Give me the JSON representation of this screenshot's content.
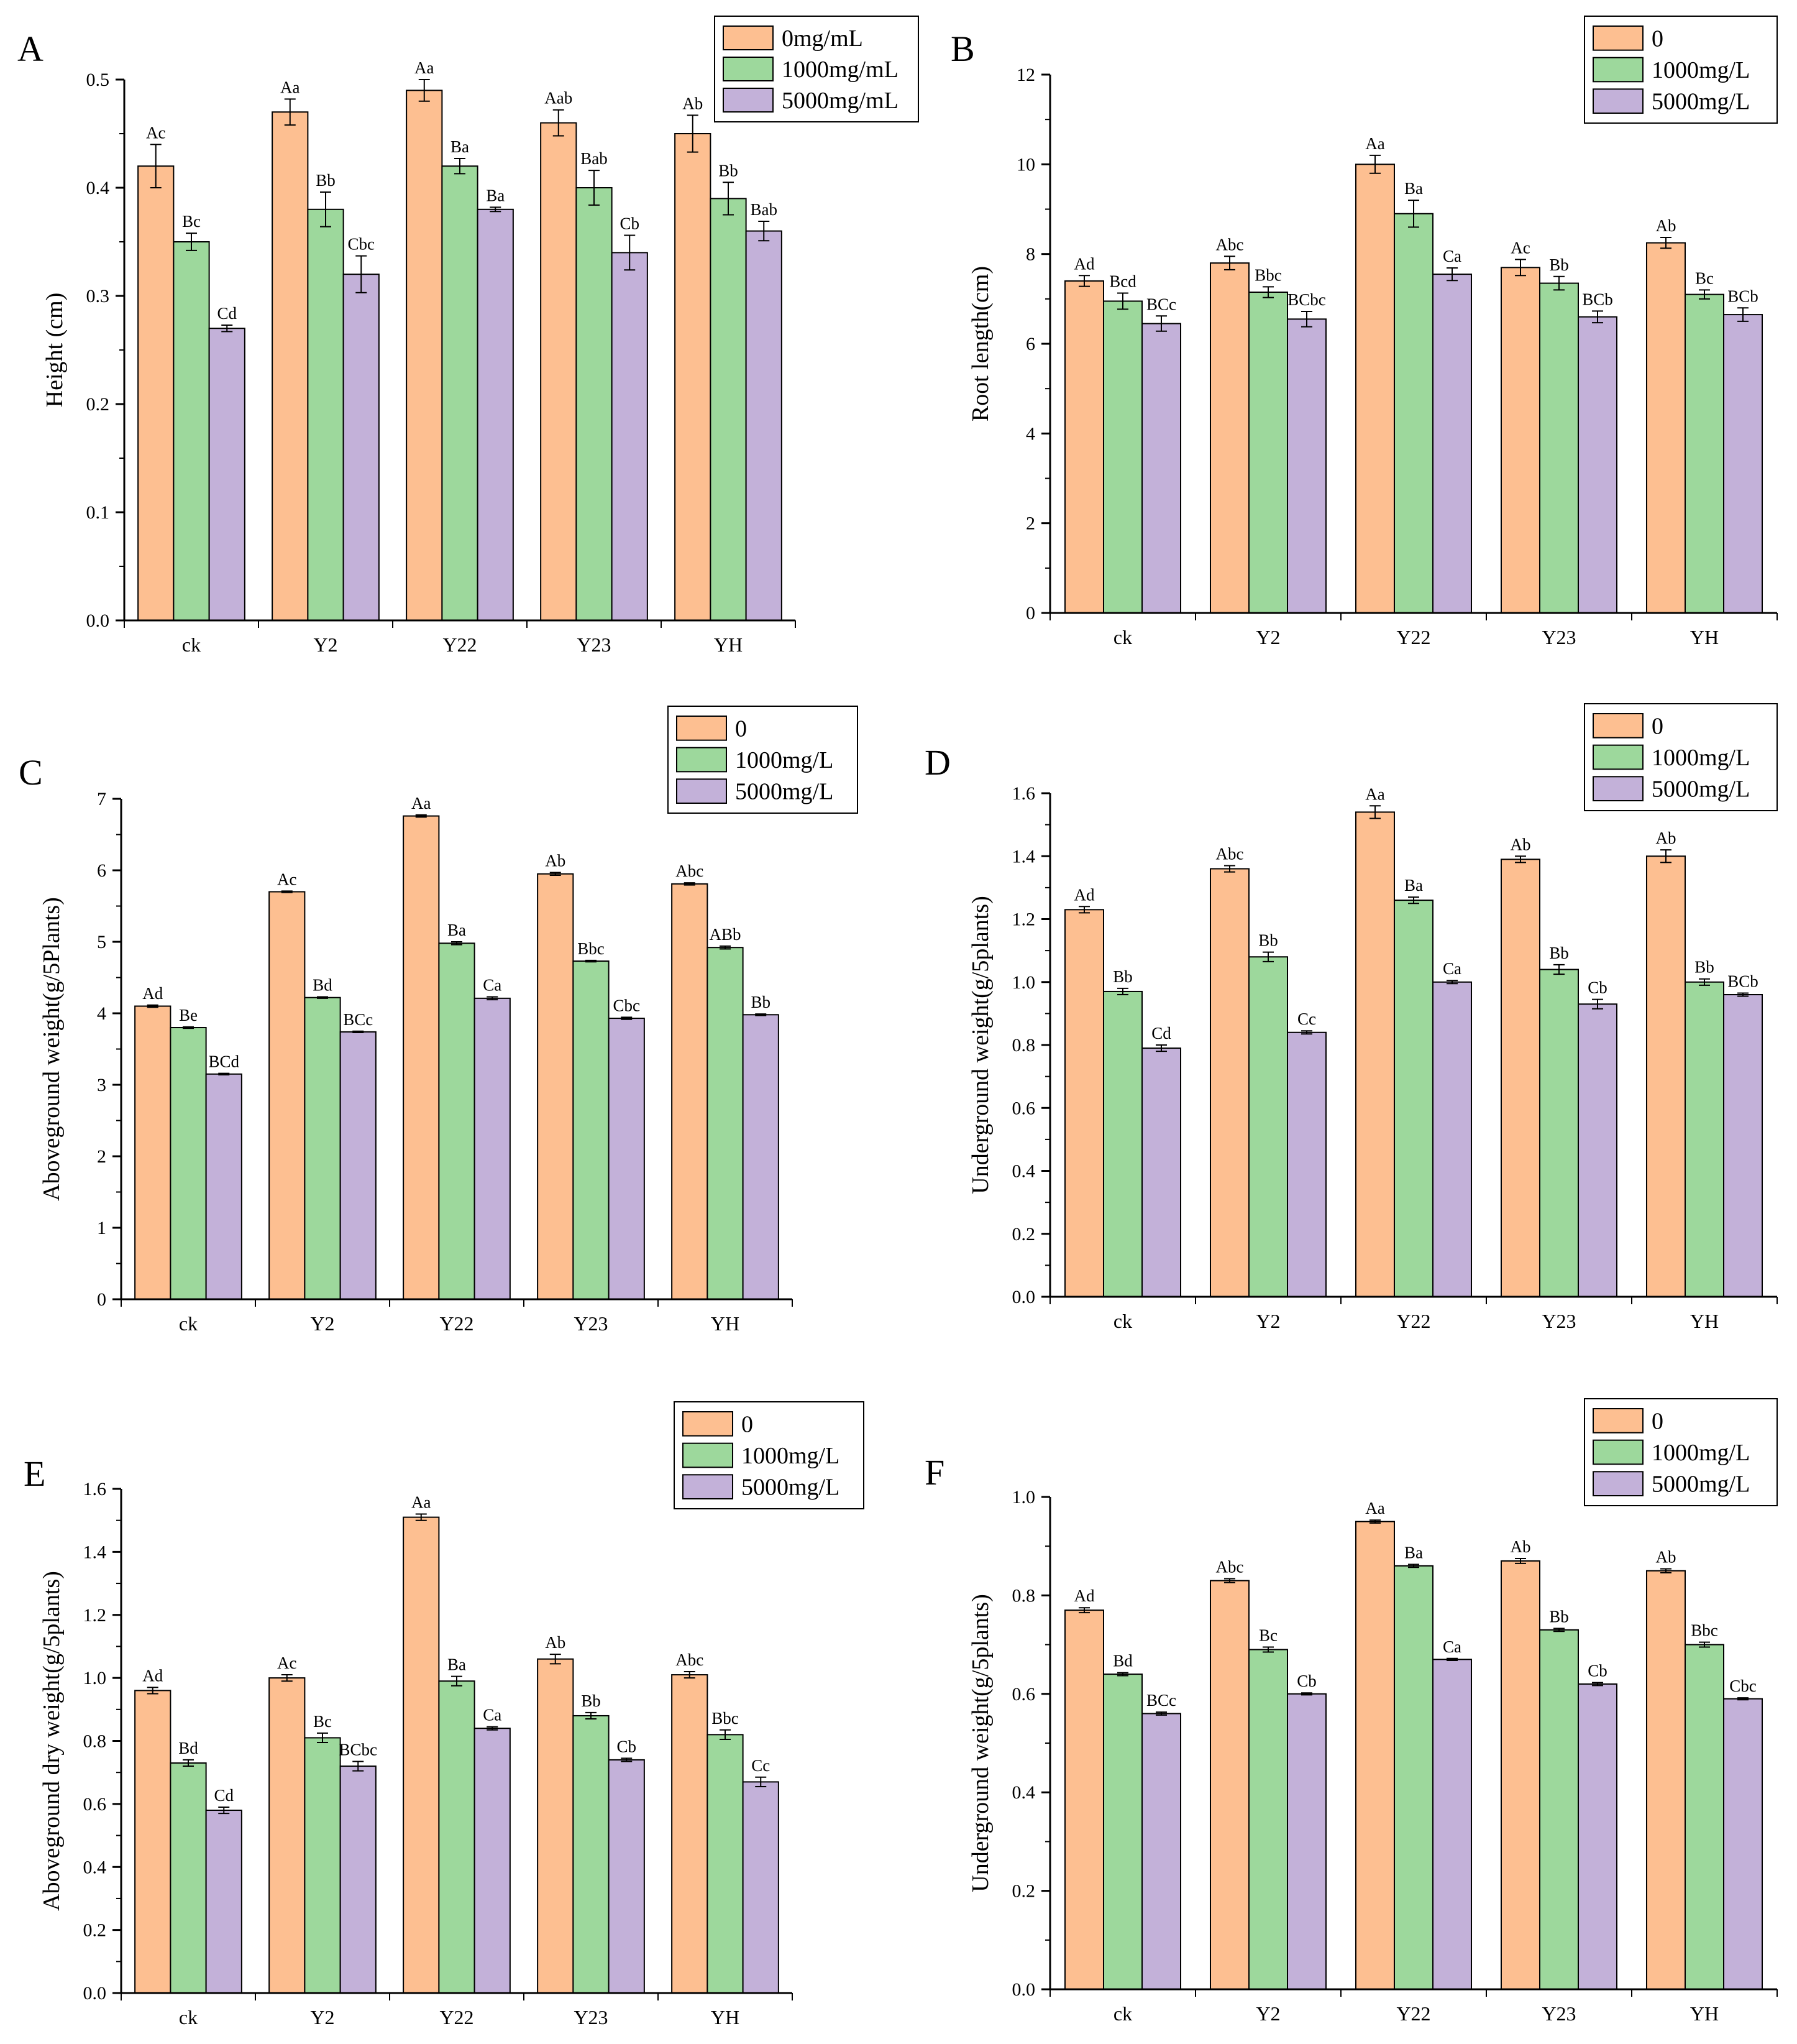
{
  "colors": {
    "series": [
      "#fdbf91",
      "#9dd89c",
      "#c3b1d9"
    ],
    "stroke": "#000000"
  },
  "chart_data": [
    {
      "panel": "A",
      "type": "bar",
      "title": "",
      "xlabel": "",
      "ylabel": "Height (cm)",
      "categories": [
        "ck",
        "Y2",
        "Y22",
        "Y23",
        "YH"
      ],
      "ylim": [
        0,
        0.5
      ],
      "yticks": [
        0,
        0.1,
        0.2,
        0.3,
        0.4,
        0.5
      ],
      "tick_decimals": 1,
      "legend": "top-right",
      "series": [
        {
          "name": "0mg/mL",
          "values": [
            0.42,
            0.47,
            0.49,
            0.46,
            0.45
          ],
          "errors": [
            0.02,
            0.012,
            0.01,
            0.012,
            0.017
          ],
          "labels": [
            "Ac",
            "Aa",
            "Aa",
            "Aab",
            "Ab"
          ]
        },
        {
          "name": "1000mg/mL",
          "values": [
            0.35,
            0.38,
            0.42,
            0.4,
            0.39
          ],
          "errors": [
            0.008,
            0.016,
            0.007,
            0.016,
            0.015
          ],
          "labels": [
            "Bc",
            "Bb",
            "Ba",
            "Bab",
            "Bb"
          ]
        },
        {
          "name": "5000mg/mL",
          "values": [
            0.27,
            0.32,
            0.38,
            0.34,
            0.36
          ],
          "errors": [
            0.003,
            0.017,
            0.002,
            0.016,
            0.009
          ],
          "labels": [
            "Cd",
            "Cbc",
            "Ba",
            "Cb",
            "Bab"
          ]
        }
      ]
    },
    {
      "panel": "B",
      "type": "bar",
      "title": "",
      "xlabel": "",
      "ylabel": "Root length(cm)",
      "categories": [
        "ck",
        "Y2",
        "Y22",
        "Y23",
        "YH"
      ],
      "ylim": [
        0,
        12
      ],
      "yticks": [
        0,
        2,
        4,
        6,
        8,
        10,
        12
      ],
      "tick_decimals": 0,
      "legend": "top-right",
      "series": [
        {
          "name": "0",
          "values": [
            7.4,
            7.8,
            10.0,
            7.7,
            8.25
          ],
          "errors": [
            0.12,
            0.15,
            0.2,
            0.18,
            0.12
          ],
          "labels": [
            "Ad",
            "Abc",
            "Aa",
            "Ac",
            "Ab"
          ]
        },
        {
          "name": "1000mg/L",
          "values": [
            6.95,
            7.15,
            8.9,
            7.35,
            7.1
          ],
          "errors": [
            0.18,
            0.12,
            0.3,
            0.15,
            0.1
          ],
          "labels": [
            "Bcd",
            "Bbc",
            "Ba",
            "Bb",
            "Bc"
          ]
        },
        {
          "name": "5000mg/L",
          "values": [
            6.45,
            6.55,
            7.55,
            6.6,
            6.65
          ],
          "errors": [
            0.17,
            0.17,
            0.14,
            0.13,
            0.15
          ],
          "labels": [
            "BCc",
            "BCbc",
            "Ca",
            "BCb",
            "BCb"
          ]
        }
      ]
    },
    {
      "panel": "C",
      "type": "bar",
      "title": "",
      "xlabel": "",
      "ylabel": "Aboveground weight(g/5Plants)",
      "categories": [
        "ck",
        "Y2",
        "Y22",
        "Y23",
        "YH"
      ],
      "ylim": [
        0,
        7
      ],
      "yticks": [
        0,
        1,
        2,
        3,
        4,
        5,
        6,
        7
      ],
      "tick_decimals": 0,
      "legend": "top-right",
      "series": [
        {
          "name": "0",
          "values": [
            4.1,
            5.7,
            6.76,
            5.95,
            5.81
          ],
          "errors": [
            0.015,
            0.01,
            0.015,
            0.02,
            0.015
          ],
          "labels": [
            "Ad",
            "Ac",
            "Aa",
            "Ab",
            "Abc"
          ]
        },
        {
          "name": "1000mg/L",
          "values": [
            3.8,
            4.22,
            4.98,
            4.73,
            4.92
          ],
          "errors": [
            0.01,
            0.01,
            0.02,
            0.01,
            0.02
          ],
          "labels": [
            "Be",
            "Bd",
            "Ba",
            "Bbc",
            "ABb"
          ]
        },
        {
          "name": "5000mg/L",
          "values": [
            3.15,
            3.74,
            4.21,
            3.93,
            3.98
          ],
          "errors": [
            0.01,
            0.01,
            0.02,
            0.015,
            0.01
          ],
          "labels": [
            "BCd",
            "BCc",
            "Ca",
            "Cbc",
            "Bb"
          ]
        }
      ]
    },
    {
      "panel": "D",
      "type": "bar",
      "title": "",
      "xlabel": "",
      "ylabel": "Underground weight(g/5plants)",
      "categories": [
        "ck",
        "Y2",
        "Y22",
        "Y23",
        "YH"
      ],
      "ylim": [
        0,
        1.6
      ],
      "yticks": [
        0,
        0.2,
        0.4,
        0.6,
        0.8,
        1.0,
        1.2,
        1.4,
        1.6
      ],
      "tick_decimals": 1,
      "legend": "top-right",
      "series": [
        {
          "name": "0",
          "values": [
            1.23,
            1.36,
            1.54,
            1.39,
            1.4
          ],
          "errors": [
            0.01,
            0.01,
            0.02,
            0.01,
            0.02
          ],
          "labels": [
            "Ad",
            "Abc",
            "Aa",
            "Ab",
            "Ab"
          ]
        },
        {
          "name": "1000mg/L",
          "values": [
            0.97,
            1.08,
            1.26,
            1.04,
            1.0
          ],
          "errors": [
            0.01,
            0.015,
            0.01,
            0.015,
            0.01
          ],
          "labels": [
            "Bb",
            "Bb",
            "Ba",
            "Bb",
            "Bb"
          ]
        },
        {
          "name": "5000mg/L",
          "values": [
            0.79,
            0.84,
            1.0,
            0.93,
            0.96
          ],
          "errors": [
            0.01,
            0.005,
            0.005,
            0.015,
            0.005
          ],
          "labels": [
            "Cd",
            "Cc",
            "Ca",
            "Cb",
            "BCb"
          ]
        }
      ]
    },
    {
      "panel": "E",
      "type": "bar",
      "title": "",
      "xlabel": "",
      "ylabel": "Aboveground dry weight(g/5plants)",
      "categories": [
        "ck",
        "Y2",
        "Y22",
        "Y23",
        "YH"
      ],
      "ylim": [
        0,
        1.6
      ],
      "yticks": [
        0,
        0.2,
        0.4,
        0.6,
        0.8,
        1.0,
        1.2,
        1.4,
        1.6
      ],
      "tick_decimals": 1,
      "legend": "top-right",
      "series": [
        {
          "name": "0",
          "values": [
            0.96,
            1.0,
            1.51,
            1.06,
            1.01
          ],
          "errors": [
            0.01,
            0.01,
            0.01,
            0.015,
            0.01
          ],
          "labels": [
            "Ad",
            "Ac",
            "Aa",
            "Ab",
            "Abc"
          ]
        },
        {
          "name": "1000mg/L",
          "values": [
            0.73,
            0.81,
            0.99,
            0.88,
            0.82
          ],
          "errors": [
            0.01,
            0.015,
            0.015,
            0.01,
            0.015
          ],
          "labels": [
            "Bd",
            "Bc",
            "Ba",
            "Bb",
            "Bbc"
          ]
        },
        {
          "name": "5000mg/L",
          "values": [
            0.58,
            0.72,
            0.84,
            0.74,
            0.67
          ],
          "errors": [
            0.01,
            0.015,
            0.005,
            0.005,
            0.015
          ],
          "labels": [
            "Cd",
            "BCbc",
            "Ca",
            "Cb",
            "Cc"
          ]
        }
      ]
    },
    {
      "panel": "F",
      "type": "bar",
      "title": "",
      "xlabel": "",
      "ylabel": "Underground weight(g/5plants)",
      "categories": [
        "ck",
        "Y2",
        "Y22",
        "Y23",
        "YH"
      ],
      "ylim": [
        0,
        1.0
      ],
      "yticks": [
        0,
        0.2,
        0.4,
        0.6,
        0.8,
        1.0
      ],
      "tick_decimals": 1,
      "legend": "top-right",
      "series": [
        {
          "name": "0",
          "values": [
            0.77,
            0.83,
            0.95,
            0.87,
            0.85
          ],
          "errors": [
            0.005,
            0.004,
            0.003,
            0.005,
            0.004
          ],
          "labels": [
            "Ad",
            "Abc",
            "Aa",
            "Ab",
            "Ab"
          ]
        },
        {
          "name": "1000mg/L",
          "values": [
            0.64,
            0.69,
            0.86,
            0.73,
            0.7
          ],
          "errors": [
            0.003,
            0.005,
            0.003,
            0.003,
            0.005
          ],
          "labels": [
            "Bd",
            "Bc",
            "Ba",
            "Bb",
            "Bbc"
          ]
        },
        {
          "name": "5000mg/L",
          "values": [
            0.56,
            0.6,
            0.67,
            0.62,
            0.59
          ],
          "errors": [
            0.003,
            0.002,
            0.002,
            0.003,
            0.002
          ],
          "labels": [
            "BCc",
            "Cb",
            "Ca",
            "Cb",
            "Cbc"
          ]
        }
      ]
    }
  ]
}
